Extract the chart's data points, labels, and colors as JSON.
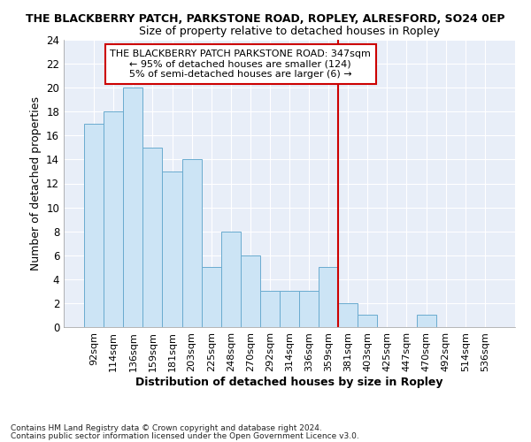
{
  "title": "THE BLACKBERRY PATCH, PARKSTONE ROAD, ROPLEY, ALRESFORD, SO24 0EP",
  "subtitle": "Size of property relative to detached houses in Ropley",
  "xlabel": "Distribution of detached houses by size in Ropley",
  "ylabel": "Number of detached properties",
  "bar_color": "#cce4f5",
  "bar_edgecolor": "#6aabcf",
  "bg_color": "#e8eef8",
  "grid_color": "#ffffff",
  "fig_bg": "#ffffff",
  "categories": [
    "92sqm",
    "114sqm",
    "136sqm",
    "159sqm",
    "181sqm",
    "203sqm",
    "225sqm",
    "248sqm",
    "270sqm",
    "292sqm",
    "314sqm",
    "336sqm",
    "359sqm",
    "381sqm",
    "403sqm",
    "425sqm",
    "447sqm",
    "470sqm",
    "492sqm",
    "514sqm",
    "536sqm"
  ],
  "values": [
    17,
    18,
    20,
    15,
    13,
    14,
    5,
    8,
    6,
    3,
    3,
    3,
    5,
    2,
    1,
    0,
    0,
    1,
    0,
    0,
    0
  ],
  "ylim": [
    0,
    24
  ],
  "yticks": [
    0,
    2,
    4,
    6,
    8,
    10,
    12,
    14,
    16,
    18,
    20,
    22,
    24
  ],
  "vline_x": 12.5,
  "vline_color": "#cc0000",
  "annotation_title": "THE BLACKBERRY PATCH PARKSTONE ROAD: 347sqm",
  "annotation_line1": "← 95% of detached houses are smaller (124)",
  "annotation_line2": "5% of semi-detached houses are larger (6) →",
  "annotation_box_color": "#cc0000",
  "footer_line1": "Contains HM Land Registry data © Crown copyright and database right 2024.",
  "footer_line2": "Contains public sector information licensed under the Open Government Licence v3.0."
}
